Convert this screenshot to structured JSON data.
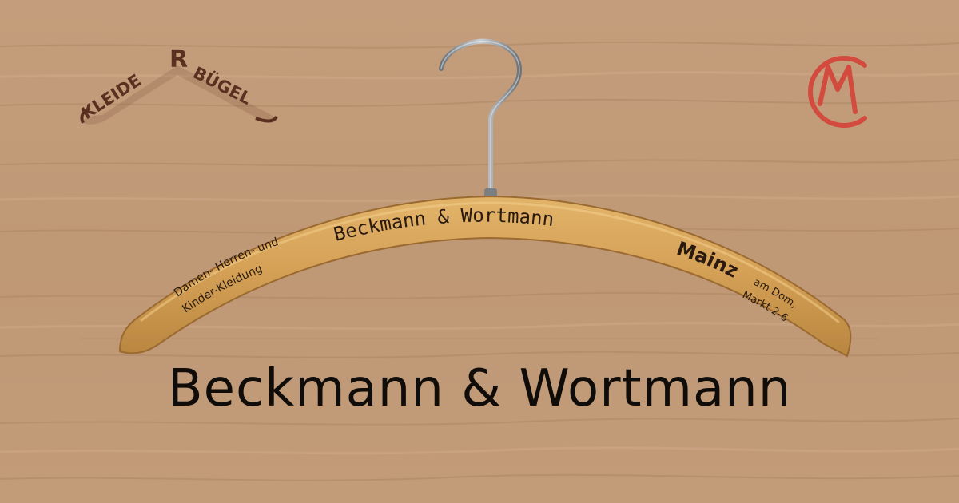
{
  "logo_left": {
    "word1": "KLEIDE",
    "word2": "BÜGEL"
  },
  "logo_right": {
    "letters": "CM"
  },
  "hanger": {
    "left_line1": "Damen- Herren- und",
    "left_line2": "Kinder-Kleidung",
    "center_name": "Beckmann & Wortmann",
    "city": "Mainz",
    "address_line1": "am Dom,",
    "address_line2": "Markt 2-6"
  },
  "caption": "Beckmann & Wortmann",
  "colors": {
    "wood_background": "#c09a78",
    "hanger_wood": "#d6a35a",
    "ink": "#2a1a10",
    "logo_right_red": "#d24b3e",
    "hook_metal": "#8a8f94"
  }
}
